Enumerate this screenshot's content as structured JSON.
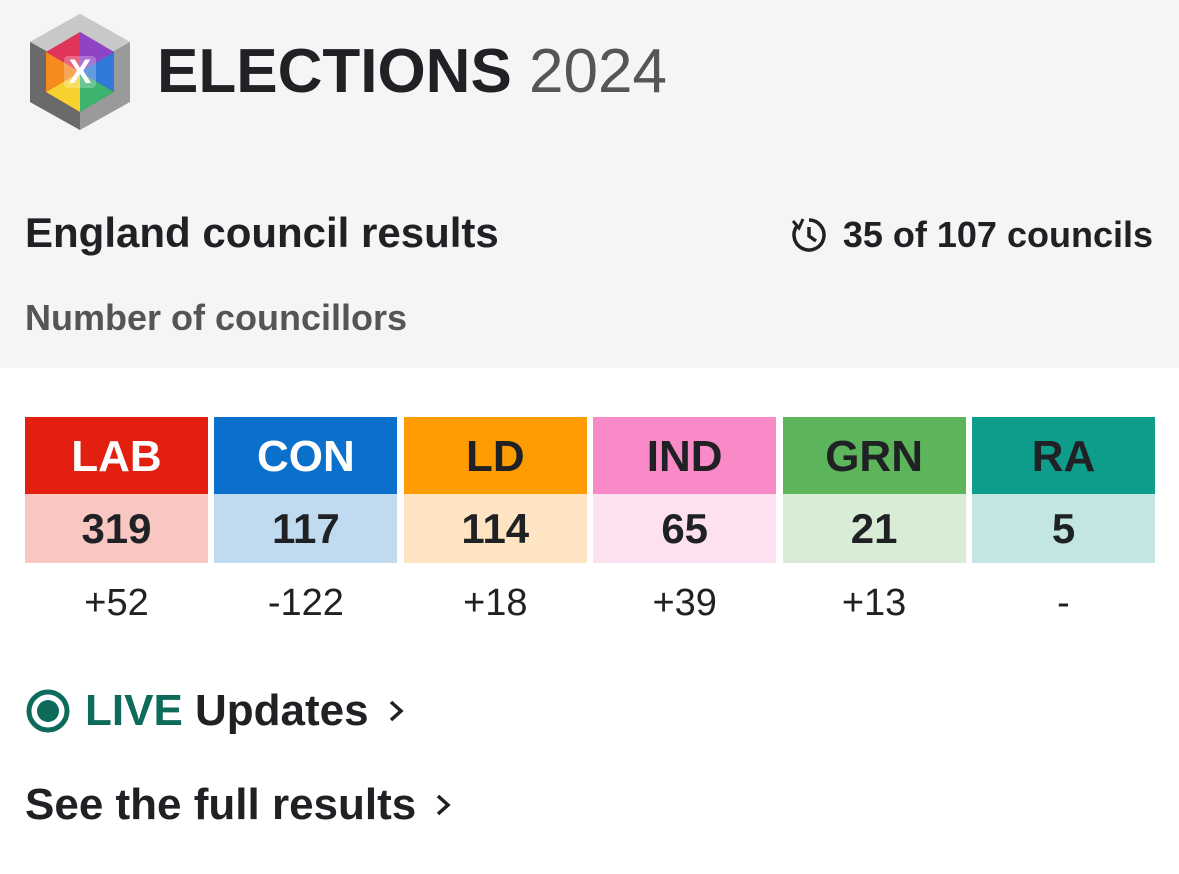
{
  "header": {
    "title": "ELECTIONS",
    "year": "2024"
  },
  "results": {
    "title": "England council results",
    "progress": "35 of 107 councils",
    "subtitle": "Number of councillors",
    "parties": [
      {
        "abbr": "LAB",
        "seats": 319,
        "change": "+52",
        "color": "#e3200f",
        "light": "#f8c7c2",
        "text": "#ffffff"
      },
      {
        "abbr": "CON",
        "seats": 117,
        "change": "-122",
        "color": "#0b70cc",
        "light": "#c0dbf0",
        "text": "#ffffff"
      },
      {
        "abbr": "LD",
        "seats": 114,
        "change": "+18",
        "color": "#fd9c00",
        "light": "#fee4c3",
        "text": "#202124"
      },
      {
        "abbr": "IND",
        "seats": 65,
        "change": "+39",
        "color": "#f88ac8",
        "light": "#fde1f0",
        "text": "#202124"
      },
      {
        "abbr": "GRN",
        "seats": 21,
        "change": "+13",
        "color": "#5db55b",
        "light": "#d9edd6",
        "text": "#202124"
      },
      {
        "abbr": "RA",
        "seats": 5,
        "change": "-",
        "color": "#0e9c8b",
        "light": "#c3e6e2",
        "text": "#202124"
      }
    ]
  },
  "links": {
    "live": "LIVE",
    "updates": "Updates",
    "full": "See the full results"
  }
}
